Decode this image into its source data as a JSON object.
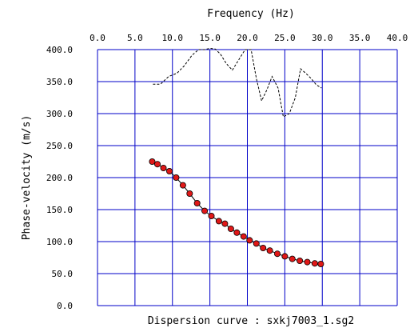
{
  "chart_data": {
    "type": "scatter",
    "xlabel": "Frequency (Hz)",
    "ylabel": "Phase-velocity (m/s)",
    "caption": "Dispersion curve : sxkj7003_1.sg2",
    "xlim": [
      0,
      40
    ],
    "ylim": [
      0,
      400
    ],
    "x_ticks": [
      "0.0",
      "5.0",
      "10.0",
      "15.0",
      "20.0",
      "25.0",
      "30.0",
      "35.0",
      "40.0"
    ],
    "y_ticks": [
      "0.0",
      "50.0",
      "100.0",
      "150.0",
      "200.0",
      "250.0",
      "300.0",
      "350.0",
      "400.0"
    ],
    "grid": true,
    "colors": {
      "grid": "#0000c8",
      "points": "#e01818",
      "curve": "#000000",
      "dashed": "#000000"
    },
    "series": [
      {
        "style": "dashed-line",
        "x": [
          7.4,
          8.4,
          9.5,
          10.6,
          11.6,
          12.6,
          13.5,
          14.3,
          15.0,
          15.7,
          16.4,
          17.2,
          18.0,
          18.9,
          19.7,
          20.5,
          21.2,
          21.9,
          22.6,
          23.3,
          24.1,
          24.8,
          25.6,
          26.4,
          27.1,
          27.8,
          28.5,
          29.2,
          29.9
        ],
        "y": [
          346,
          346,
          358,
          363,
          375,
          391,
          400,
          400,
          402,
          401,
          393,
          378,
          368,
          385,
          400,
          400,
          355,
          320,
          337,
          358,
          340,
          295,
          300,
          325,
          370,
          363,
          355,
          345,
          340
        ]
      },
      {
        "style": "points",
        "x": [
          7.3,
          8.0,
          8.8,
          9.6,
          10.5,
          11.4,
          12.3,
          13.3,
          14.3,
          15.2,
          16.2,
          17.0,
          17.8,
          18.6,
          19.5,
          20.3,
          21.2,
          22.1,
          23.0,
          24.0,
          25.0,
          26.0,
          27.0,
          28.0,
          29.0,
          29.8
        ],
        "y": [
          225,
          221,
          215,
          210,
          200,
          188,
          175,
          160,
          148,
          140,
          132,
          128,
          120,
          114,
          108,
          102,
          97,
          90,
          86,
          81,
          77,
          73,
          70,
          68,
          66,
          65
        ]
      }
    ]
  }
}
